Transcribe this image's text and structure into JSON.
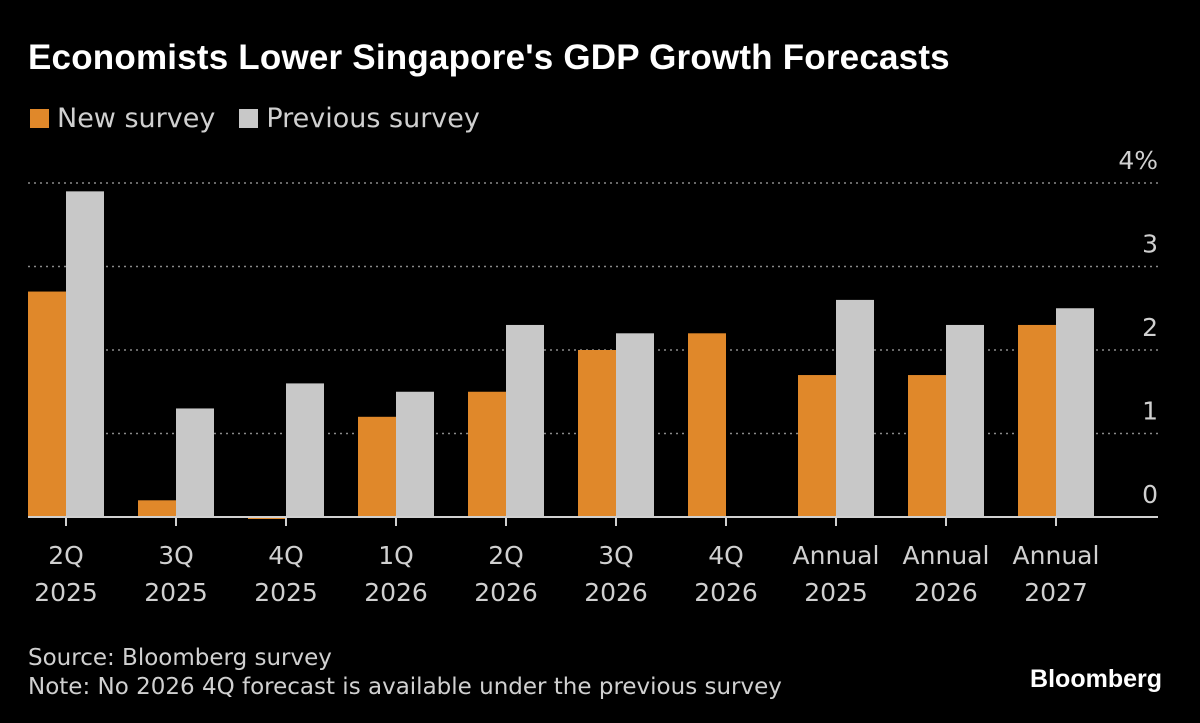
{
  "header": {
    "title": "Economists Lower Singapore's GDP Growth Forecasts"
  },
  "legend": [
    {
      "label": "New survey",
      "color": "#e0882a"
    },
    {
      "label": "Previous survey",
      "color": "#c8c8c8"
    }
  ],
  "chart_data": {
    "type": "bar",
    "title": "Economists Lower Singapore's GDP Growth Forecasts",
    "categories": [
      [
        "2Q",
        "2025"
      ],
      [
        "3Q",
        "2025"
      ],
      [
        "4Q",
        "2025"
      ],
      [
        "1Q",
        "2026"
      ],
      [
        "2Q",
        "2026"
      ],
      [
        "3Q",
        "2026"
      ],
      [
        "4Q",
        "2026"
      ],
      [
        "Annual",
        "2025"
      ],
      [
        "Annual",
        "2026"
      ],
      [
        "Annual",
        "2027"
      ]
    ],
    "series": [
      {
        "name": "New survey",
        "color": "#e0882a",
        "values": [
          2.7,
          0.2,
          -0.02,
          1.2,
          1.5,
          2.0,
          2.2,
          1.7,
          1.7,
          2.3
        ]
      },
      {
        "name": "Previous survey",
        "color": "#c8c8c8",
        "values": [
          3.9,
          1.3,
          1.6,
          1.5,
          2.3,
          2.2,
          null,
          2.6,
          2.3,
          2.5
        ]
      }
    ],
    "ylim": [
      0,
      4
    ],
    "yticks": [
      "0",
      "1",
      "2",
      "3",
      "4%"
    ],
    "xlabel": "",
    "ylabel": "",
    "grid": true,
    "legend_position": "top-left"
  },
  "footer": {
    "source": "Source: Bloomberg survey",
    "note": "Note: No 2026 4Q forecast is available under the previous survey"
  },
  "branding": {
    "logo": "Bloomberg"
  }
}
